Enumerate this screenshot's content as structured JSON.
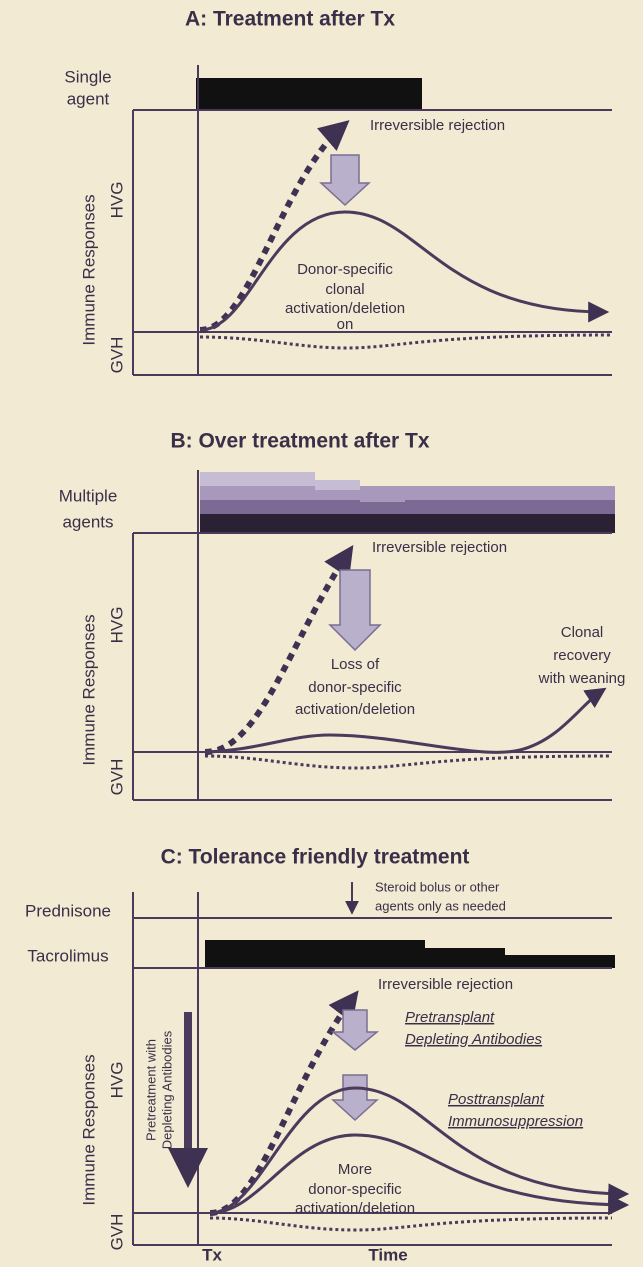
{
  "panels": [
    {
      "title": "A: Treatment after Tx",
      "treatment": [
        "Single",
        "agent"
      ],
      "y_axis": "Immune Responses",
      "hvg": "HVG",
      "gvh": "GVH",
      "rejection": "Irreversible rejection",
      "note": [
        "Donor-specific",
        "clonal",
        "activation/deletion",
        "on"
      ]
    },
    {
      "title": "B: Over treatment after Tx",
      "treatment": [
        "Multiple",
        "agents"
      ],
      "y_axis": "Immune Responses",
      "hvg": "HVG",
      "gvh": "GVH",
      "rejection": "Irreversible rejection",
      "note": [
        "Loss of",
        "donor-specific",
        "activation/deletion"
      ],
      "recovery": [
        "Clonal",
        "recovery",
        "with weaning"
      ]
    },
    {
      "title": "C: Tolerance friendly treatment",
      "treatments": [
        "Prednisone",
        "Tacrolimus"
      ],
      "steroid_note": [
        "Steroid bolus or other",
        "agents only as needed"
      ],
      "y_axis": "Immune Responses",
      "hvg": "HVG",
      "gvh": "GVH",
      "rejection": "Irreversible rejection",
      "pretransplant": [
        "Pretransplant",
        "Depleting Antibodies"
      ],
      "posttransplant": [
        "Posttransplant",
        "Immunosuppression"
      ],
      "pretreatment": [
        "Pretreatment with",
        "Depleting Antibodies"
      ],
      "note": [
        "More",
        "donor-specific",
        "activation/deletion"
      ]
    }
  ],
  "x_axis": {
    "start": "Tx",
    "label": "Time"
  }
}
